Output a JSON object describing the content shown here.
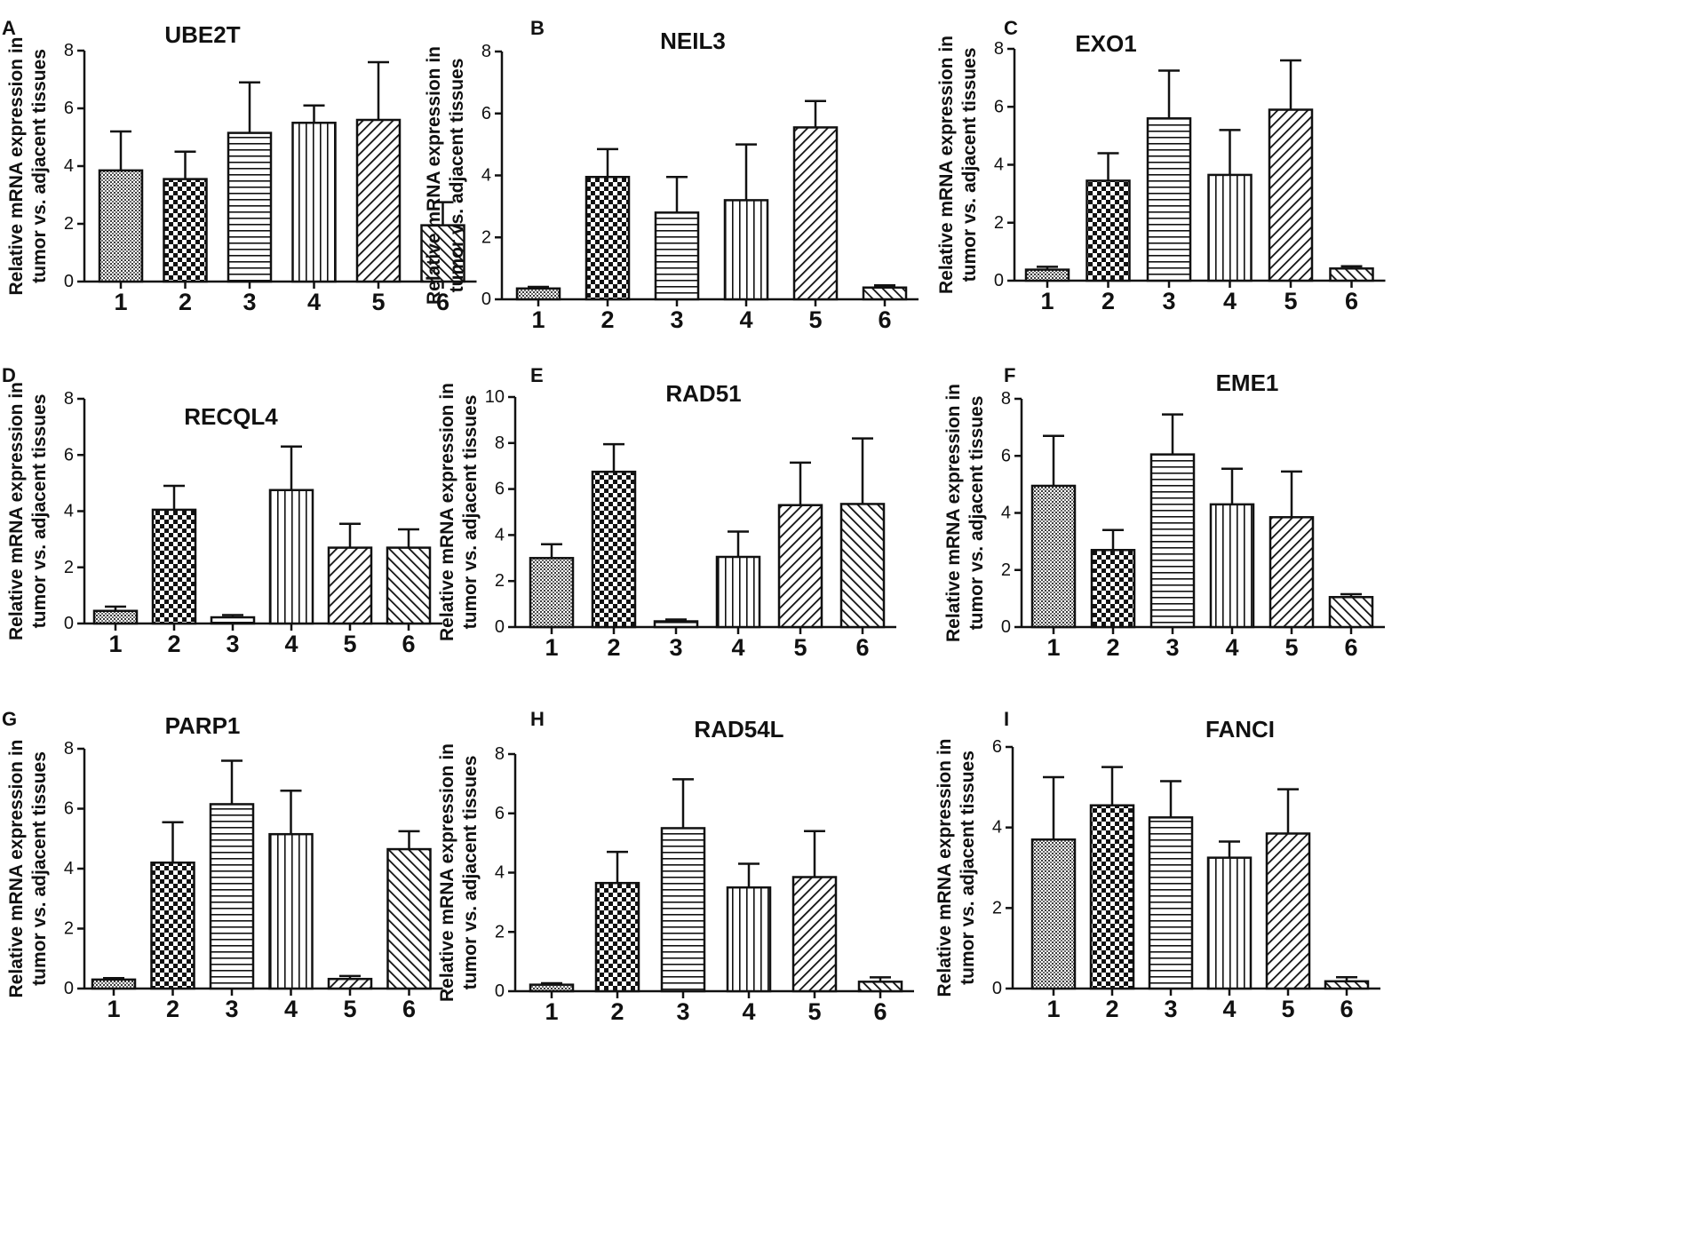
{
  "figure": {
    "ylabel_line1": "Relative mRNA expression in",
    "ylabel_line2": "tumor vs. adjacent  tissues"
  },
  "chart_data": [
    {
      "panel": "A",
      "title": "UBE2T",
      "type": "bar",
      "categories": [
        "1",
        "2",
        "3",
        "4",
        "5",
        "6"
      ],
      "values": [
        3.85,
        3.55,
        5.15,
        5.5,
        5.6,
        1.95
      ],
      "errors": [
        1.35,
        0.95,
        1.75,
        0.6,
        2.0,
        0.8
      ],
      "ylim": [
        0,
        8
      ],
      "yticks": [
        0,
        2,
        4,
        6,
        8
      ],
      "patterns": [
        "dots",
        "checker",
        "hlines",
        "vlines",
        "diag",
        "rdiag"
      ]
    },
    {
      "panel": "B",
      "title": "NEIL3",
      "type": "bar",
      "categories": [
        "1",
        "2",
        "3",
        "4",
        "5",
        "6"
      ],
      "values": [
        0.35,
        3.95,
        2.8,
        3.2,
        5.55,
        0.38
      ],
      "errors": [
        0.05,
        0.9,
        1.15,
        1.8,
        0.85,
        0.07
      ],
      "ylim": [
        0,
        8
      ],
      "yticks": [
        0,
        2,
        4,
        6,
        8
      ],
      "patterns": [
        "dots",
        "checker",
        "hlines",
        "vlines",
        "diag",
        "rdiag"
      ]
    },
    {
      "panel": "C",
      "title": "EXO1",
      "type": "bar",
      "categories": [
        "1",
        "2",
        "3",
        "4",
        "5",
        "6"
      ],
      "values": [
        0.38,
        3.45,
        5.6,
        3.65,
        5.9,
        0.42
      ],
      "errors": [
        0.1,
        0.95,
        1.65,
        1.55,
        1.7,
        0.08
      ],
      "ylim": [
        0,
        8
      ],
      "yticks": [
        0,
        2,
        4,
        6,
        8
      ],
      "patterns": [
        "dots",
        "checker",
        "hlines",
        "vlines",
        "diag",
        "rdiag"
      ]
    },
    {
      "panel": "D",
      "title": "RECQL4",
      "type": "bar",
      "categories": [
        "1",
        "2",
        "3",
        "4",
        "5",
        "6"
      ],
      "values": [
        0.45,
        4.05,
        0.22,
        4.75,
        2.7,
        2.7
      ],
      "errors": [
        0.15,
        0.85,
        0.08,
        1.55,
        0.85,
        0.65
      ],
      "ylim": [
        0,
        8
      ],
      "yticks": [
        0,
        2,
        4,
        6,
        8
      ],
      "patterns": [
        "dots",
        "checker",
        "hlines",
        "vlines",
        "diag",
        "rdiag"
      ]
    },
    {
      "panel": "E",
      "title": "RAD51",
      "type": "bar",
      "categories": [
        "1",
        "2",
        "3",
        "4",
        "5",
        "6"
      ],
      "values": [
        3.0,
        6.75,
        0.25,
        3.05,
        5.3,
        5.35
      ],
      "errors": [
        0.6,
        1.2,
        0.08,
        1.1,
        1.85,
        2.85
      ],
      "ylim": [
        0,
        10
      ],
      "yticks": [
        0,
        2,
        4,
        6,
        8,
        10
      ],
      "patterns": [
        "dots",
        "checker",
        "hlines",
        "vlines",
        "diag",
        "rdiag"
      ]
    },
    {
      "panel": "F",
      "title": "EME1",
      "type": "bar",
      "categories": [
        "1",
        "2",
        "3",
        "4",
        "5",
        "6"
      ],
      "values": [
        4.95,
        2.7,
        6.05,
        4.3,
        3.85,
        1.05
      ],
      "errors": [
        1.75,
        0.7,
        1.4,
        1.25,
        1.6,
        0.1
      ],
      "ylim": [
        0,
        8
      ],
      "yticks": [
        0,
        2,
        4,
        6,
        8
      ],
      "patterns": [
        "dots",
        "checker",
        "hlines",
        "vlines",
        "diag",
        "rdiag"
      ]
    },
    {
      "panel": "G",
      "title": "PARP1",
      "type": "bar",
      "categories": [
        "1",
        "2",
        "3",
        "4",
        "5",
        "6"
      ],
      "values": [
        0.3,
        4.2,
        6.15,
        5.15,
        0.32,
        4.65
      ],
      "errors": [
        0.05,
        1.35,
        1.45,
        1.45,
        0.1,
        0.6
      ],
      "ylim": [
        0,
        8
      ],
      "yticks": [
        0,
        2,
        4,
        6,
        8
      ],
      "patterns": [
        "dots",
        "checker",
        "hlines",
        "vlines",
        "diag",
        "rdiag"
      ]
    },
    {
      "panel": "H",
      "title": "RAD54L",
      "type": "bar",
      "categories": [
        "1",
        "2",
        "3",
        "4",
        "5",
        "6"
      ],
      "values": [
        0.22,
        3.65,
        5.5,
        3.5,
        3.85,
        0.32
      ],
      "errors": [
        0.05,
        1.05,
        1.65,
        0.8,
        1.55,
        0.15
      ],
      "ylim": [
        0,
        8
      ],
      "yticks": [
        0,
        2,
        4,
        6,
        8
      ],
      "patterns": [
        "dots",
        "checker",
        "hlines",
        "vlines",
        "diag",
        "rdiag"
      ]
    },
    {
      "panel": "I",
      "title": "FANCI",
      "type": "bar",
      "categories": [
        "1",
        "2",
        "3",
        "4",
        "5",
        "6"
      ],
      "values": [
        3.7,
        4.55,
        4.25,
        3.25,
        3.85,
        0.18
      ],
      "errors": [
        1.55,
        0.95,
        0.9,
        0.4,
        1.1,
        0.1
      ],
      "ylim": [
        0,
        6
      ],
      "yticks": [
        0,
        2,
        4,
        6
      ],
      "patterns": [
        "dots",
        "checker",
        "hlines",
        "vlines",
        "diag",
        "rdiag"
      ]
    }
  ]
}
